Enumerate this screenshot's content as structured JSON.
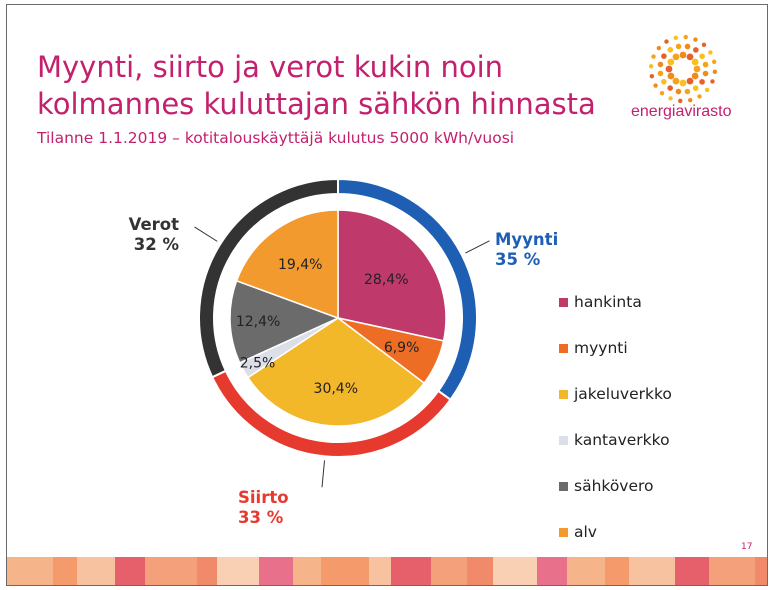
{
  "slide": {
    "title_line1": "Myynti, siirto ja verot kukin noin",
    "title_line2": "kolmannes kuluttajan sähkön hinnasta",
    "subtitle": "Tilanne 1.1.2019 – kotitalouskäyttäjä kulutus 5000 kWh/vuosi",
    "logo_text": "energiavirasto",
    "page_number": "17",
    "accent_color": "#c3206e"
  },
  "chart_data": {
    "type": "pie",
    "inner": {
      "categories": [
        "hankinta",
        "myynti",
        "jakeluverkko",
        "kantaverkko",
        "sähkövero",
        "alv"
      ],
      "values": [
        28.4,
        6.9,
        30.4,
        2.5,
        12.4,
        19.4
      ],
      "labels": [
        "28,4%",
        "6,9%",
        "30,4%",
        "2,5%",
        "12,4%",
        "19,4%"
      ],
      "colors": [
        "#c0396b",
        "#ee6d25",
        "#f3b72a",
        "#dddfe8",
        "#6b6b6b",
        "#f29a2e"
      ]
    },
    "outer": {
      "groups": [
        {
          "name": "Myynti",
          "value_label": "35 %",
          "value": 35,
          "color": "#1e5fb4"
        },
        {
          "name": "Siirto",
          "value_label": "33 %",
          "value": 33,
          "color": "#e63a2e"
        },
        {
          "name": "Verot",
          "value_label": "32 %",
          "value": 32,
          "color": "#333333"
        }
      ]
    },
    "legend_position": "right"
  }
}
